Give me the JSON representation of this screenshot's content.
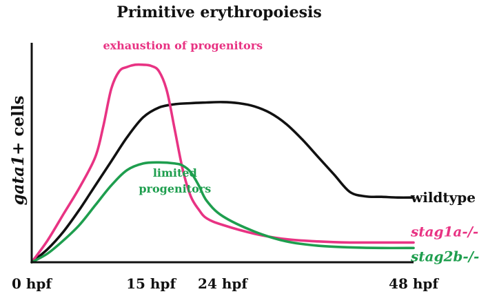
{
  "chart_data": {
    "type": "line",
    "title": "Primitive erythropoiesis",
    "ylabel_italic": "gata1",
    "ylabel_rest": "+ cells",
    "xlabel": "",
    "xticks": [
      "0 hpf",
      "15 hpf",
      "24 hpf",
      "48 hpf"
    ],
    "xtick_values": [
      0,
      15,
      24,
      48
    ],
    "grid": false,
    "series": [
      {
        "name": "wildtype",
        "color": "#111111",
        "italic": false,
        "x": [
          0,
          2,
          4,
          6,
          8,
          10,
          12,
          14,
          16,
          18,
          20,
          22,
          24,
          26,
          28,
          30,
          32,
          34,
          36,
          38,
          40,
          42,
          44,
          46,
          48
        ],
        "y": [
          0,
          0.6,
          1.4,
          2.4,
          3.5,
          4.6,
          5.7,
          6.6,
          7.05,
          7.2,
          7.25,
          7.28,
          7.3,
          7.25,
          7.1,
          6.8,
          6.3,
          5.6,
          4.8,
          4.0,
          3.2,
          3.0,
          2.98,
          2.95,
          2.95
        ]
      },
      {
        "name": "stag1a-/-",
        "color": "#e83383",
        "italic": true,
        "x": [
          0,
          2,
          4,
          6,
          8,
          9,
          10,
          11,
          12,
          13,
          14,
          15,
          16,
          17,
          18,
          19,
          20,
          21,
          22,
          24,
          28,
          32,
          36,
          40,
          44,
          48
        ],
        "y": [
          0,
          1.0,
          2.2,
          3.4,
          4.8,
          6.2,
          7.9,
          8.7,
          8.9,
          9.0,
          9.0,
          8.95,
          8.7,
          7.8,
          6.0,
          4.2,
          3.0,
          2.4,
          2.0,
          1.7,
          1.3,
          1.05,
          0.95,
          0.9,
          0.9,
          0.9
        ]
      },
      {
        "name": "stag2b-/-",
        "color": "#1e9e4e",
        "italic": true,
        "x": [
          0,
          2,
          4,
          6,
          8,
          10,
          12,
          14,
          16,
          18,
          19,
          20,
          21,
          22,
          24,
          28,
          32,
          36,
          40,
          44,
          48
        ],
        "y": [
          0,
          0.4,
          1.0,
          1.7,
          2.6,
          3.5,
          4.2,
          4.5,
          4.55,
          4.5,
          4.4,
          4.1,
          3.5,
          2.8,
          2.1,
          1.4,
          0.95,
          0.75,
          0.68,
          0.65,
          0.65
        ]
      }
    ],
    "annotations": [
      {
        "text": "exhaustion of progenitors",
        "color": "#e83383",
        "x": 19,
        "y": 9.7,
        "lines": [
          "exhaustion of progenitors"
        ]
      },
      {
        "text": "limited progenitors",
        "color": "#1e9e4e",
        "x": 18,
        "y": 3.9,
        "lines": [
          "limited",
          "progenitors"
        ]
      }
    ],
    "xlim": [
      0,
      48
    ],
    "ylim": [
      0,
      10
    ]
  }
}
